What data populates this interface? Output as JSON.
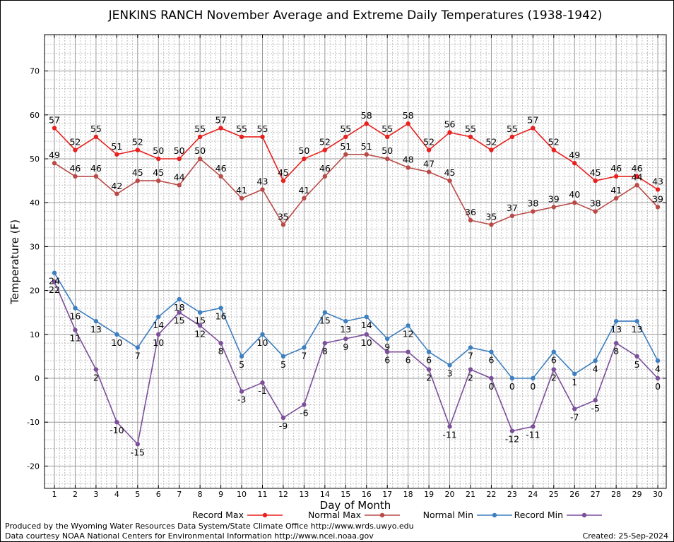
{
  "chart_data": {
    "type": "line",
    "title": "JENKINS RANCH November Average and Extreme Daily Temperatures (1938-1942)",
    "xlabel": "Day of Month",
    "ylabel": "Temperature (F)",
    "x": [
      "1",
      "2",
      "3",
      "4",
      "5",
      "6",
      "7",
      "8",
      "9",
      "10",
      "11",
      "12",
      "13",
      "14",
      "15",
      "16",
      "17",
      "18",
      "19",
      "20",
      "21",
      "22",
      "23",
      "24",
      "25",
      "26",
      "27",
      "28",
      "29",
      "30"
    ],
    "ylim": [
      -25,
      78
    ],
    "yticks": [
      -20,
      -10,
      0,
      10,
      20,
      30,
      40,
      50,
      60,
      70
    ],
    "grid": true,
    "legend_position": "bottom",
    "series": [
      {
        "name": "Record Max",
        "color": "#e8201e",
        "values": [
          57,
          52,
          55,
          51,
          52,
          50,
          50,
          55,
          57,
          55,
          55,
          45,
          50,
          52,
          55,
          58,
          55,
          58,
          52,
          56,
          55,
          52,
          55,
          57,
          52,
          49,
          45,
          46,
          46,
          43
        ],
        "labels_below": false
      },
      {
        "name": "Normal Max",
        "color": "#b94a48",
        "values": [
          49,
          46,
          46,
          42,
          45,
          45,
          44,
          50,
          46,
          41,
          43,
          35,
          41,
          46,
          51,
          51,
          50,
          48,
          47,
          45,
          36,
          35,
          37,
          38,
          39,
          40,
          38,
          41,
          44,
          39
        ],
        "labels_below": false
      },
      {
        "name": "Normal Min",
        "color": "#3d7fbf",
        "values": [
          24,
          16,
          13,
          10,
          7,
          14,
          18,
          15,
          16,
          5,
          10,
          5,
          7,
          15,
          13,
          14,
          9,
          12,
          6,
          3,
          7,
          6,
          0,
          0,
          6,
          1,
          4,
          13,
          13,
          4
        ],
        "labels_below": true
      },
      {
        "name": "Record Min",
        "color": "#7b4f9a",
        "values": [
          22,
          11,
          2,
          -10,
          -15,
          10,
          15,
          12,
          8,
          -3,
          -1,
          -9,
          -6,
          8,
          9,
          10,
          6,
          6,
          2,
          -11,
          2,
          0,
          -12,
          -11,
          2,
          -7,
          -5,
          8,
          5,
          0
        ],
        "labels_below": true
      }
    ]
  },
  "footer": {
    "produced_by": "Produced by the Wyoming Water Resources Data System/State Climate Office http://www.wrds.uwyo.edu",
    "courtesy": "Data courtesy NOAA National Centers for Environmental Information http://www.ncei.noaa.gov",
    "created": "Created:  25-Sep-2024"
  }
}
